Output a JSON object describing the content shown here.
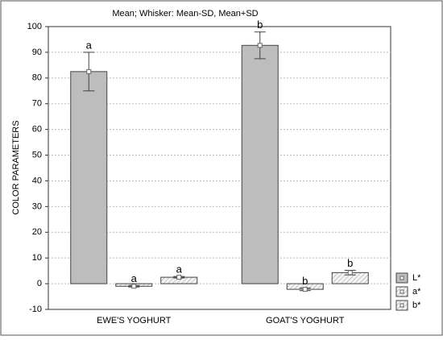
{
  "chart_data": {
    "type": "bar",
    "title": "Mean;  Whisker: Mean-SD, Mean+SD",
    "y_label": "COLOR  PARAMETERS",
    "categories": [
      "EWE'S YOGHURT",
      "GOAT'S YOGHURT"
    ],
    "series": [
      {
        "name": "L*",
        "color": "#bdbdbd",
        "hatch": false,
        "values": [
          82.5,
          92.7
        ],
        "errors": [
          7.5,
          5.2
        ],
        "letters": [
          "a",
          "b"
        ]
      },
      {
        "name": "a*",
        "color": "#9a9a9a",
        "hatch": true,
        "values": [
          -1,
          -2.2
        ],
        "errors": [
          0.3,
          0.5
        ],
        "letters": [
          "a",
          "b"
        ]
      },
      {
        "name": "b*",
        "color": "#9a9a9a",
        "hatch": true,
        "values": [
          2.5,
          4.3
        ],
        "errors": [
          0.3,
          0.9
        ],
        "letters": [
          "a",
          "b"
        ]
      }
    ],
    "ylim": [
      -10,
      100
    ],
    "yticks": [
      -10,
      0,
      10,
      20,
      30,
      40,
      50,
      60,
      70,
      80,
      90,
      100
    ],
    "grid": true
  }
}
